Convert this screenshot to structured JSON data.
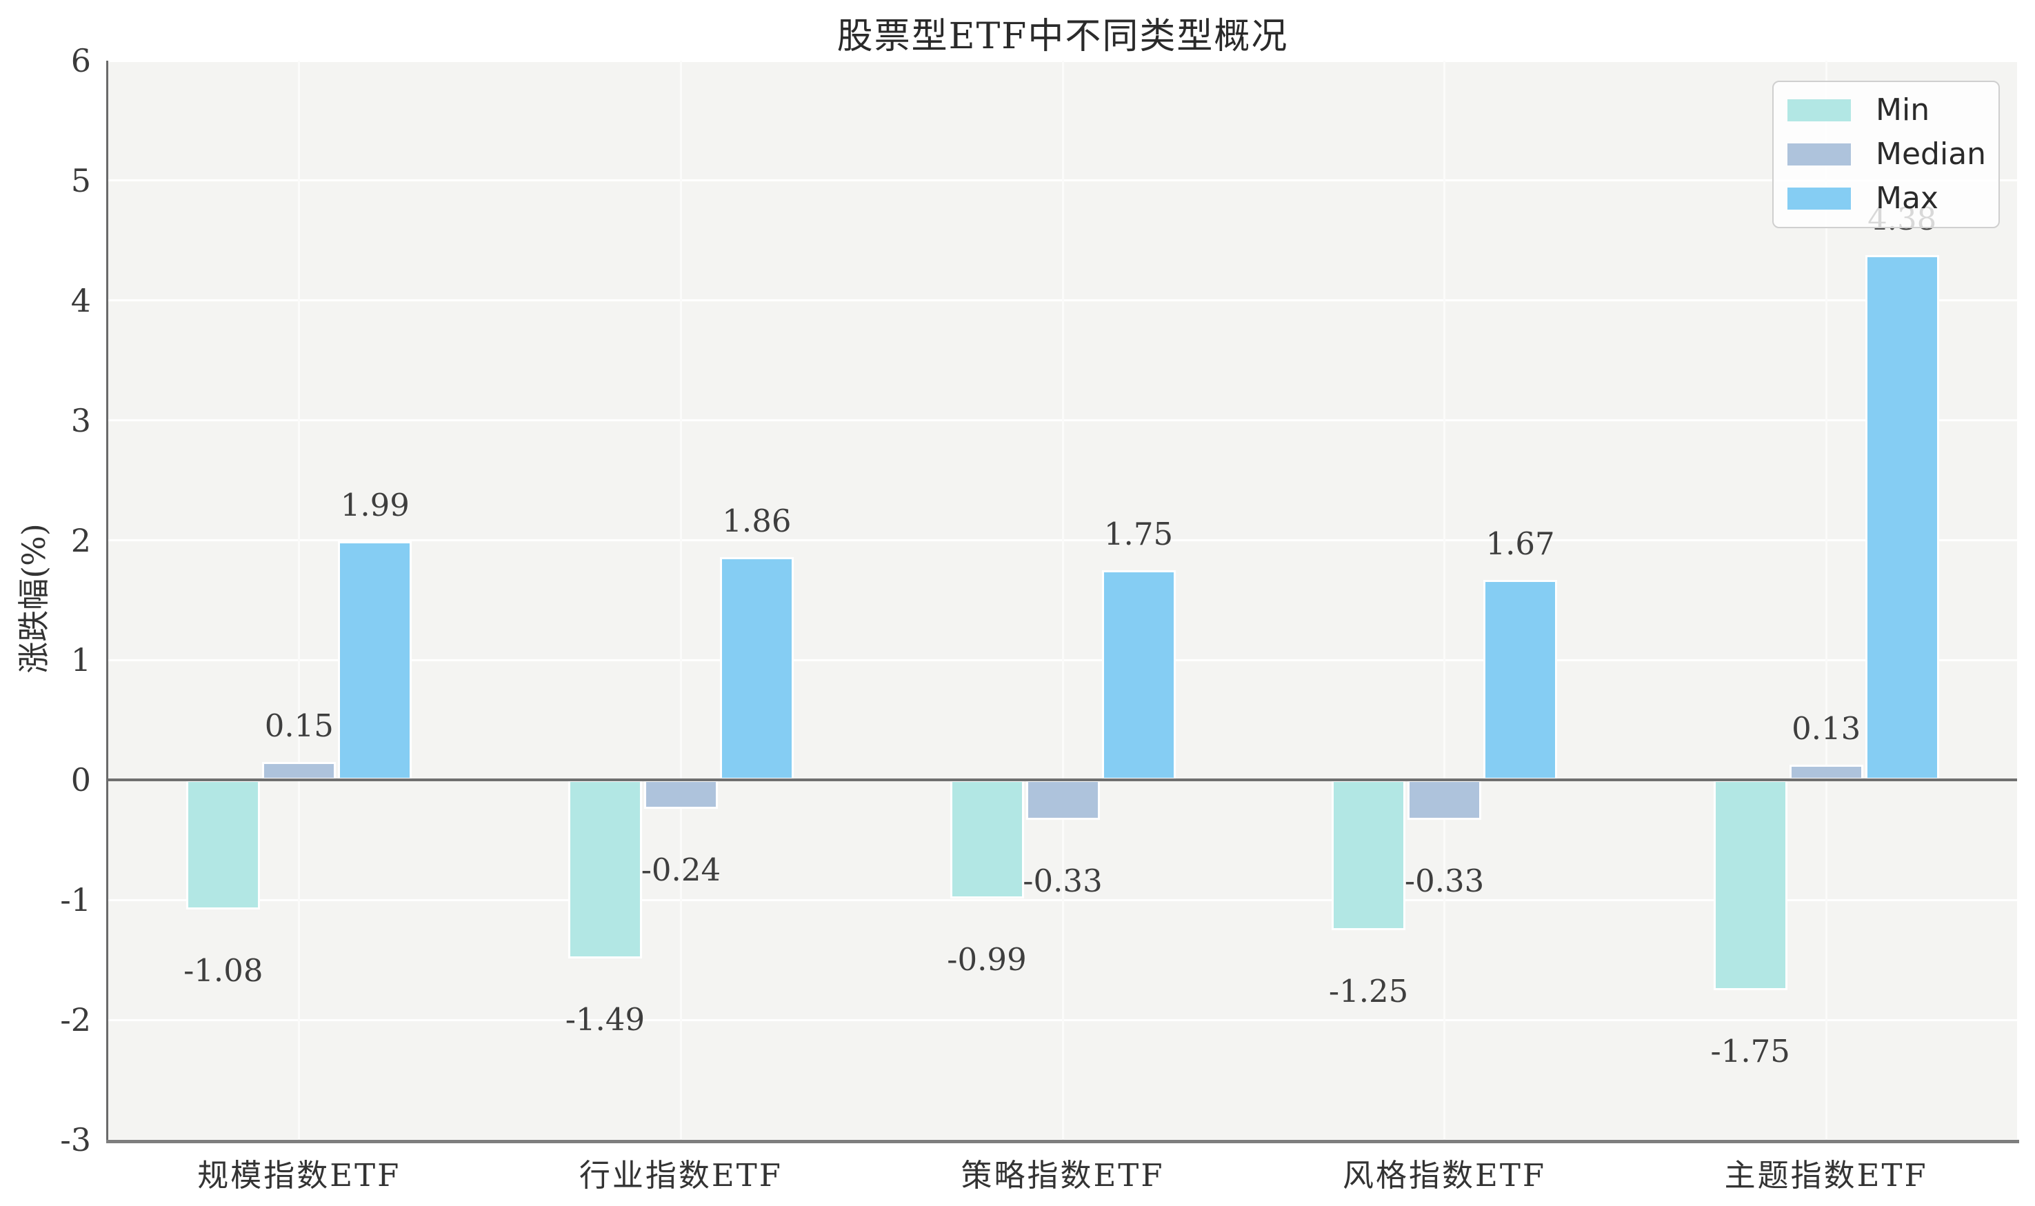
{
  "chart_data": {
    "type": "bar",
    "title": "股票型ETF中不同类型概况",
    "ylabel": "涨跌幅(%)",
    "xlabel": "",
    "categories": [
      "规模指数ETF",
      "行业指数ETF",
      "策略指数ETF",
      "风格指数ETF",
      "主题指数ETF"
    ],
    "series": [
      {
        "name": "Min",
        "color": "#b2e7e4",
        "values": [
          -1.08,
          -1.49,
          -0.99,
          -1.25,
          -1.75
        ]
      },
      {
        "name": "Median",
        "color": "#aec3dc",
        "values": [
          0.15,
          -0.24,
          -0.33,
          -0.33,
          0.13
        ]
      },
      {
        "name": "Max",
        "color": "#85cdf3",
        "values": [
          1.99,
          1.86,
          1.75,
          1.67,
          4.38
        ]
      }
    ],
    "ylim": [
      -3,
      6
    ],
    "yticks": [
      -3,
      -2,
      -1,
      0,
      1,
      2,
      3,
      4,
      5,
      6
    ],
    "grid": true,
    "bar_labels_decimals": 2,
    "legend": {
      "position": "upper right",
      "labels": [
        "Min",
        "Median",
        "Max"
      ]
    }
  },
  "colors": {
    "plot_background": "#f4f4f2",
    "gridline": "#ffffff",
    "zero_line": "#6f6f6f",
    "spine": "#6a6a6a",
    "title_text": "#2a2a2a",
    "tick_text": "#3a3a3a",
    "bar_label_text": "#3e3e3e",
    "legend_border": "#cfcfcf"
  }
}
